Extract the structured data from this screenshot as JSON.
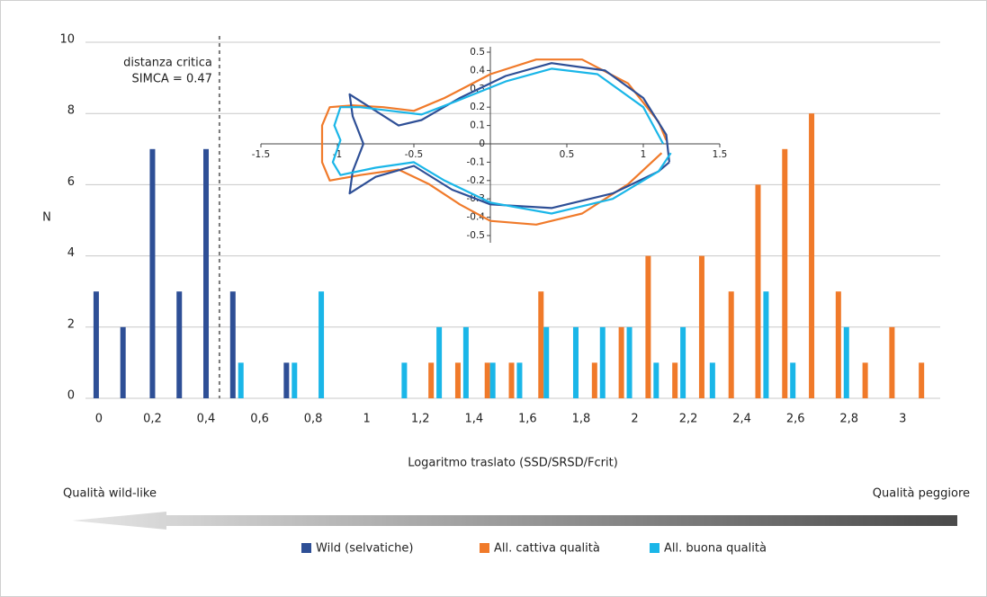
{
  "chart_data": [
    {
      "type": "bar",
      "y_label": "N",
      "x_label": "Logaritmo traslato (SSD/SRSD/Fcrit)",
      "annotation_lines": [
        "distanza critica",
        "SIMCA = 0.47"
      ],
      "critical_x": 0.45,
      "arrow_left_label": "Qualità wild-like",
      "arrow_right_label": "Qualità peggiore",
      "xlim": [
        -0.05,
        3.14
      ],
      "ylim": [
        0,
        10
      ],
      "xticks": [
        0,
        {
          "value": 0.2,
          "label": "0,2"
        },
        {
          "value": 0.4,
          "label": "0,4"
        },
        {
          "value": 0.6,
          "label": "0,6"
        },
        {
          "value": 0.8,
          "label": "0,8"
        },
        1,
        {
          "value": 1.2,
          "label": "1,2"
        },
        {
          "value": 1.4,
          "label": "1,4"
        },
        {
          "value": 1.6,
          "label": "1,6"
        },
        {
          "value": 1.8,
          "label": "1,8"
        },
        2,
        {
          "value": 2.2,
          "label": "2,2"
        },
        {
          "value": 2.4,
          "label": "2,4"
        },
        {
          "value": 2.6,
          "label": "2,6"
        },
        {
          "value": 2.8,
          "label": "2,8"
        },
        3
      ],
      "yticks": [
        0,
        2,
        4,
        6,
        8,
        10
      ],
      "grid": true,
      "legend": "bottom",
      "series": [
        {
          "name": "Wild (selvatiche)",
          "color": "#2e4f96",
          "x": [
            -0.01,
            0.09,
            0.2,
            0.3,
            0.4,
            0.5,
            0.7
          ],
          "values": [
            3,
            2,
            7,
            3,
            7,
            3,
            1
          ]
        },
        {
          "name": "All. cattiva qualità",
          "color": "#f07a2a",
          "x": [
            1.24,
            1.34,
            1.45,
            1.54,
            1.65,
            1.85,
            1.95,
            2.05,
            2.15,
            2.25,
            2.36,
            2.46,
            2.56,
            2.66,
            2.76,
            2.86,
            2.96,
            3.07
          ],
          "values": [
            1,
            1,
            1,
            1,
            3,
            1,
            2,
            4,
            1,
            4,
            3,
            6,
            7,
            8,
            3,
            1,
            2,
            1
          ]
        },
        {
          "name": "All. buona qualità",
          "color": "#1ab6e8",
          "x": [
            0.53,
            0.73,
            0.83,
            1.14,
            1.27,
            1.37,
            1.47,
            1.57,
            1.67,
            1.78,
            1.88,
            1.98,
            2.08,
            2.18,
            2.29,
            2.49,
            2.59,
            2.79
          ],
          "values": [
            1,
            1,
            3,
            1,
            2,
            2,
            1,
            1,
            2,
            2,
            2,
            2,
            1,
            2,
            1,
            3,
            1,
            2
          ]
        }
      ]
    },
    {
      "type": "line",
      "xlim": [
        -1.5,
        1.5
      ],
      "ylim": [
        -0.5,
        0.5
      ],
      "xticks": [
        -1.5,
        -1,
        -0.5,
        0.5,
        1,
        1.5
      ],
      "yticks": [
        0.5,
        0.4,
        0.3,
        0.2,
        0.1,
        0,
        -0.1,
        -0.2,
        -0.3,
        -0.4,
        -0.5
      ],
      "series": [
        {
          "color": "#f07a2a",
          "x": [
            1.15,
            1.1,
            0.9,
            0.6,
            0.3,
            0,
            -0.3,
            -0.5,
            -0.7,
            -0.9,
            -1.05,
            -1.1,
            -1.1,
            -1.05,
            -0.85,
            -0.6,
            -0.4,
            -0.2,
            0,
            0.3,
            0.6,
            0.9,
            1.12
          ],
          "values": [
            0.02,
            0.12,
            0.33,
            0.46,
            0.46,
            0.38,
            0.25,
            0.18,
            0.2,
            0.21,
            0.2,
            0.1,
            -0.1,
            -0.2,
            -0.17,
            -0.14,
            -0.22,
            -0.33,
            -0.42,
            -0.44,
            -0.38,
            -0.22,
            -0.05
          ]
        },
        {
          "color": "#2e4f96",
          "x": [
            1.17,
            1.15,
            1.0,
            0.75,
            0.4,
            0.1,
            -0.2,
            -0.45,
            -0.6,
            -0.75,
            -0.92,
            -0.9,
            -0.83,
            -0.9,
            -0.92,
            -0.75,
            -0.5,
            -0.25,
            0,
            0.4,
            0.8,
            1.1,
            1.17
          ],
          "values": [
            -0.1,
            0.05,
            0.25,
            0.4,
            0.44,
            0.37,
            0.25,
            0.13,
            0.1,
            0.18,
            0.27,
            0.15,
            0,
            -0.15,
            -0.27,
            -0.18,
            -0.12,
            -0.25,
            -0.33,
            -0.35,
            -0.27,
            -0.15,
            -0.1
          ]
        },
        {
          "color": "#1ab6e8",
          "x": [
            1.13,
            1.0,
            0.7,
            0.4,
            0.1,
            -0.2,
            -0.45,
            -0.65,
            -0.85,
            -0.98,
            -1.02,
            -0.98,
            -1.03,
            -0.98,
            -0.75,
            -0.5,
            -0.3,
            0,
            0.4,
            0.8,
            1.1,
            1.18
          ],
          "values": [
            0,
            0.2,
            0.38,
            0.41,
            0.34,
            0.24,
            0.16,
            0.18,
            0.2,
            0.2,
            0.1,
            0.02,
            -0.1,
            -0.17,
            -0.13,
            -0.1,
            -0.2,
            -0.32,
            -0.38,
            -0.3,
            -0.15,
            -0.05
          ]
        }
      ]
    }
  ]
}
